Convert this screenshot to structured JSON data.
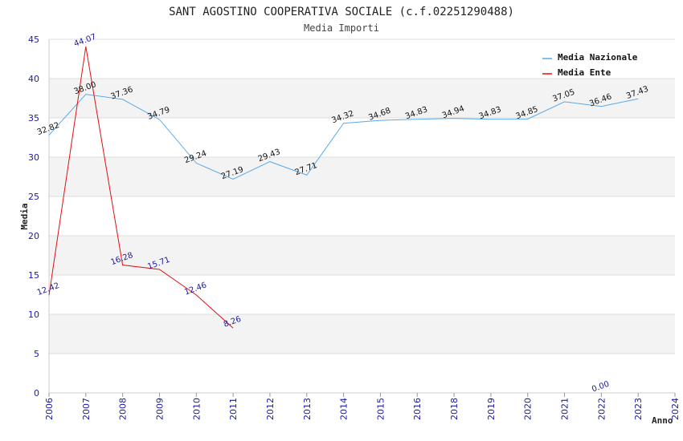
{
  "chart_data": {
    "type": "line",
    "title": "SANT AGOSTINO COOPERATIVA SOCIALE (c.f.02251290488)",
    "subtitle": "Media Importi",
    "xlabel": "Anno",
    "ylabel": "Media",
    "ylim": [
      0,
      45
    ],
    "yticks": [
      0,
      5,
      10,
      15,
      20,
      25,
      30,
      35,
      40,
      45
    ],
    "categories": [
      "2006",
      "2007",
      "2008",
      "2009",
      "2010",
      "2011",
      "2012",
      "2013",
      "2014",
      "2015",
      "2016",
      "2018",
      "2019",
      "2020",
      "2021",
      "2022",
      "2023",
      "2024"
    ],
    "grid": true,
    "legend_position": "top-right",
    "series": [
      {
        "name": "Media Nazionale",
        "color": "#5aa9e6",
        "values": [
          32.82,
          38.0,
          37.36,
          34.79,
          29.24,
          27.19,
          29.43,
          27.71,
          34.32,
          34.68,
          34.83,
          34.94,
          34.83,
          34.85,
          37.05,
          36.46,
          37.43,
          null
        ],
        "labels": [
          "32.82",
          "38.00",
          "37.36",
          "34.79",
          "29.24",
          "27.19",
          "29.43",
          "27.71",
          "34.32",
          "34.68",
          "34.83",
          "34.94",
          "34.83",
          "34.85",
          "37.05",
          "36.46",
          "37.43",
          ""
        ]
      },
      {
        "name": "Media Ente",
        "color": "#e01010",
        "values": [
          12.42,
          44.07,
          16.28,
          15.71,
          12.46,
          8.26,
          null,
          null,
          null,
          null,
          null,
          null,
          null,
          null,
          null,
          0.0,
          null,
          null
        ],
        "labels": [
          "12.42",
          "44.07",
          "16.28",
          "15.71",
          "12.46",
          "8.26",
          "",
          "",
          "",
          "",
          "",
          "",
          "",
          "",
          "",
          "0.00",
          "",
          ""
        ]
      }
    ]
  }
}
